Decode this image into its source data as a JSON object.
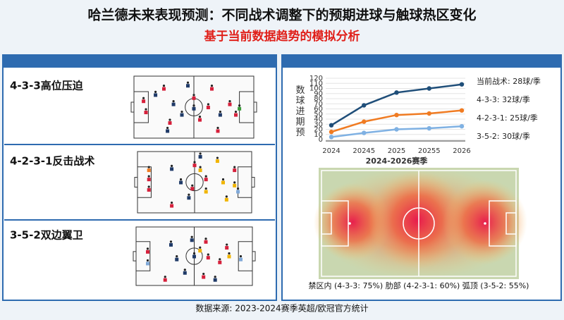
{
  "title": "哈兰德未来表现预测：不同战术调整下的预期进球与触球热区变化",
  "subtitle": "基于当前数据趋势的模拟分析",
  "tactics": [
    "4-3-3高位压迫",
    "4-2-3-1反击战术",
    "3-5-2双边翼卫"
  ],
  "chart_data": {
    "type": "line",
    "ylabel": "数球进期预",
    "xlabel": "2024-2026赛季",
    "categories": [
      "2024",
      "20245",
      "2025",
      "20255",
      "2026"
    ],
    "series": [
      {
        "color": "#1f4e79",
        "values": [
          28,
          67,
          92,
          100,
          108
        ]
      },
      {
        "color": "#f07b22",
        "values": [
          15,
          35,
          48,
          51,
          57
        ]
      },
      {
        "color": "#7fb1e3",
        "values": [
          5,
          13,
          20,
          22,
          26
        ]
      }
    ],
    "annotations": [
      "当前战术: 28球/季",
      "4-3-3: 32球/季",
      "4-2-3-1: 25球/季",
      "3-5-2: 30球/季"
    ],
    "ylim": [
      0,
      120
    ],
    "yticks": [
      0,
      10,
      20,
      30,
      40,
      50,
      60,
      70,
      80,
      90,
      100,
      110,
      120
    ]
  },
  "heatmap_caption": "禁区内 (4-3-3: 75%) 肋部 (4-2-3-1: 60%) 弧顶 (3-5-2: 55%)",
  "footer": "数据来源: 2023-2024赛季英超/欧冠官方统计"
}
